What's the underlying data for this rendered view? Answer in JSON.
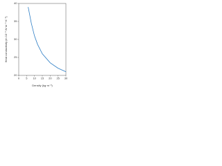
{
  "chart_data": {
    "type": "line",
    "x_label": "Density (kg·m⁻³)",
    "y_label": "Heat conductivity (in 10⁻³ W·m⁻¹·K⁻¹)",
    "x": [
      6,
      8,
      10,
      12,
      15,
      20,
      25,
      30
    ],
    "series": [
      {
        "color": "#2b7cc4",
        "values": [
          39,
          34.5,
          31,
          28.6,
          26,
          23.5,
          22,
          21
        ]
      }
    ],
    "xlim": [
      0,
      30
    ],
    "xticks": [
      0,
      5,
      10,
      15,
      20,
      25,
      30
    ],
    "ylim": [
      20,
      40
    ],
    "yticks": [
      20,
      25,
      30,
      35,
      40
    ]
  }
}
